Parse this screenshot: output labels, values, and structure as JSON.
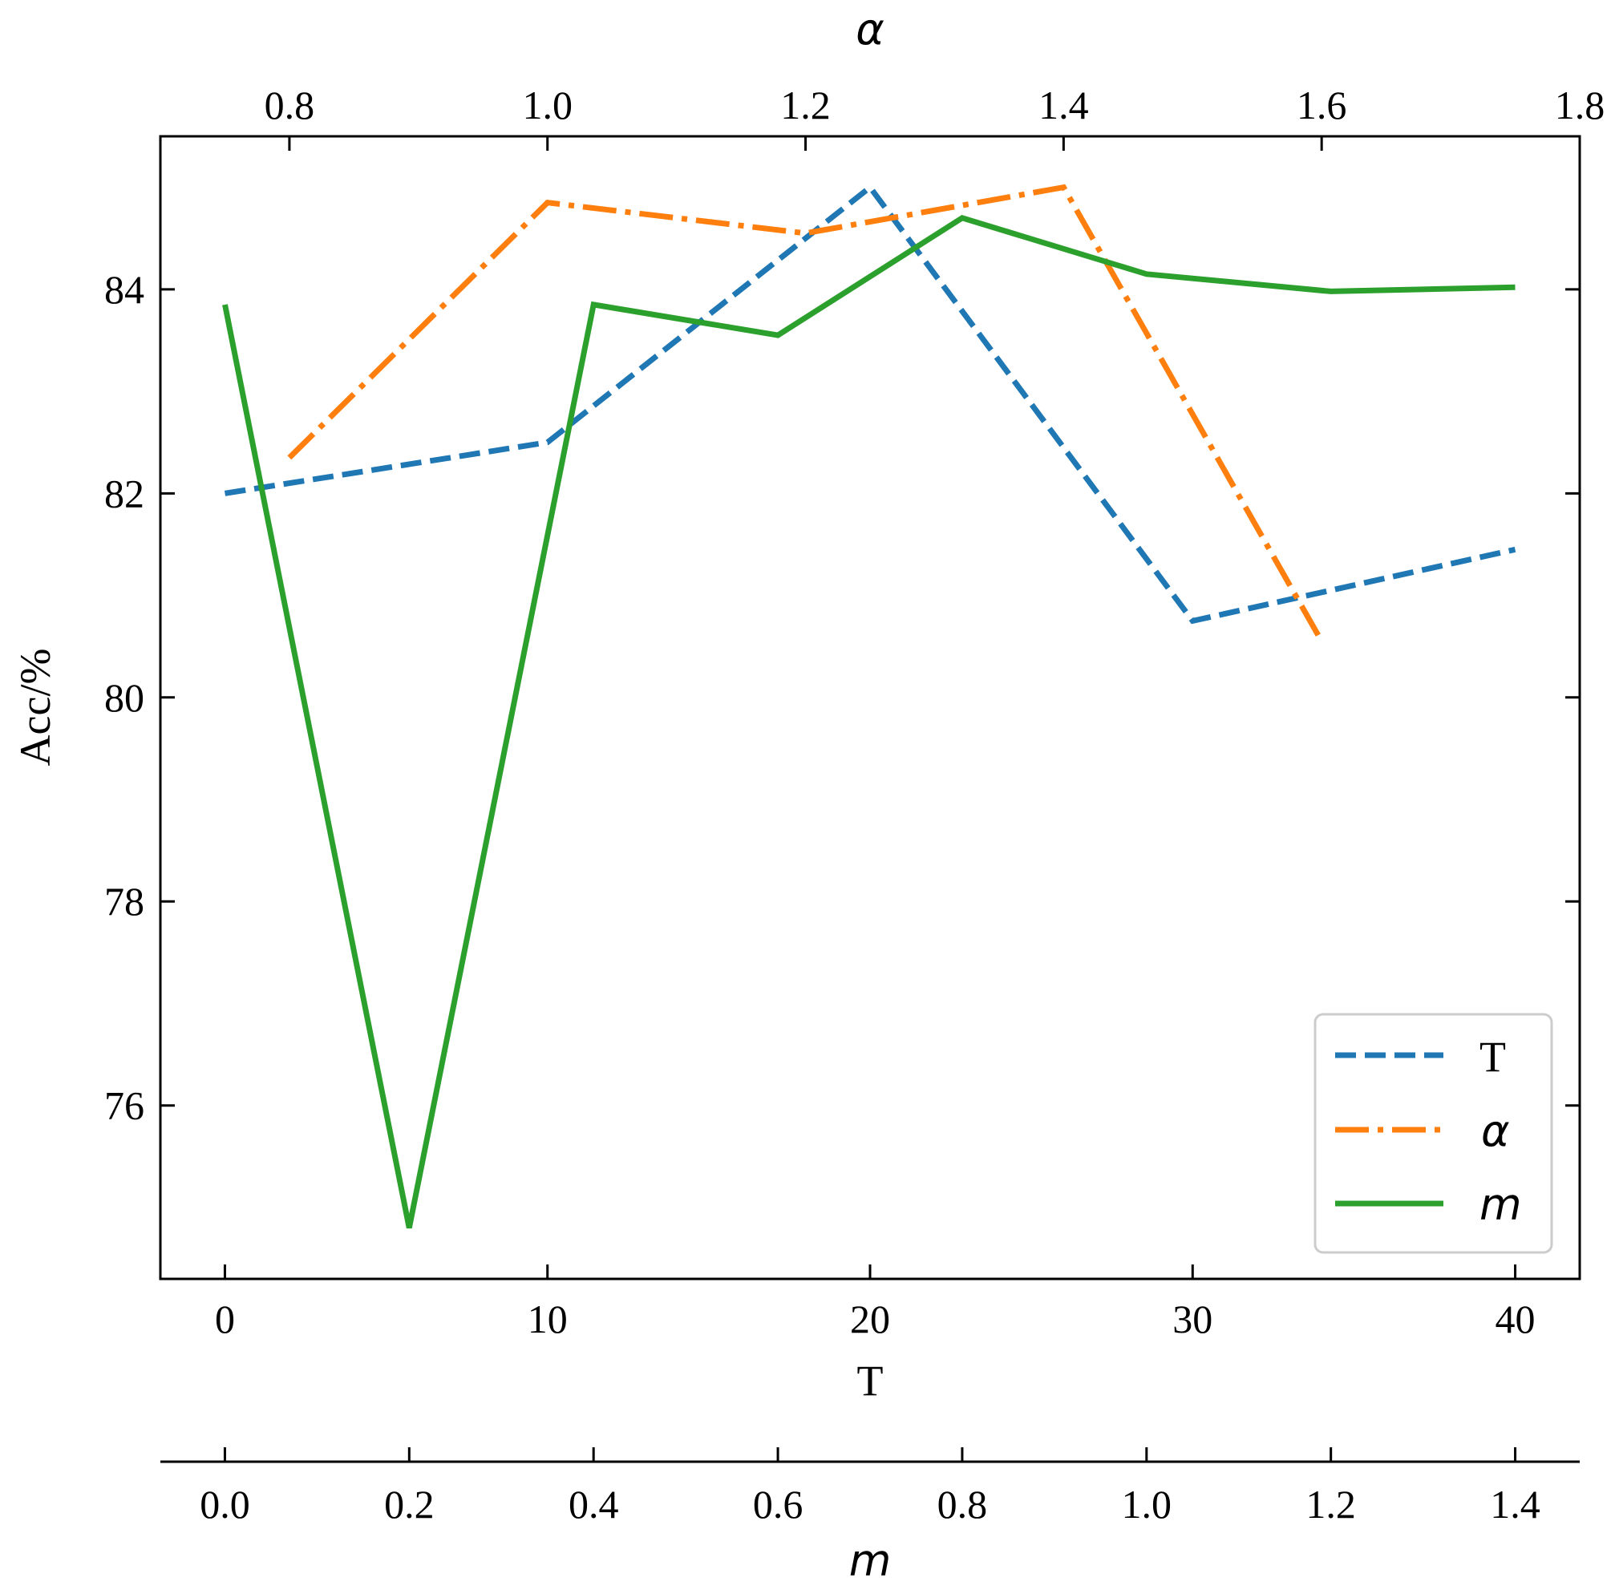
{
  "chart_data": {
    "type": "line",
    "ylabel": "Acc/%",
    "ylim": [
      74.3,
      85.5
    ],
    "y_ticks": [
      "76",
      "78",
      "80",
      "82",
      "84"
    ],
    "grid": false,
    "legend_position": "lower-right",
    "axes": {
      "T": {
        "label": "T",
        "position": "bottom",
        "range": [
          -2,
          42
        ],
        "ticks": [
          "0",
          "10",
          "20",
          "30",
          "40"
        ]
      },
      "alpha": {
        "label": "α",
        "position": "top",
        "range": [
          0.7,
          1.8
        ],
        "ticks": [
          "0.8",
          "1.0",
          "1.2",
          "1.4",
          "1.6",
          "1.8"
        ]
      },
      "m": {
        "label": "m",
        "position": "bottom-offset",
        "range": [
          -0.07,
          1.47
        ],
        "ticks": [
          "0.0",
          "0.2",
          "0.4",
          "0.6",
          "0.8",
          "1.0",
          "1.2",
          "1.4"
        ]
      }
    },
    "series": [
      {
        "name": "T",
        "axis": "T",
        "color": "#1f77b4",
        "dash": "dashed",
        "x": [
          0,
          10,
          20,
          30,
          40
        ],
        "y": [
          82.0,
          82.5,
          85.0,
          80.75,
          81.45
        ]
      },
      {
        "name": "α",
        "axis": "alpha",
        "color": "#ff7f0e",
        "dash": "dashdot",
        "x": [
          0.8,
          1.0,
          1.2,
          1.4,
          1.6
        ],
        "y": [
          82.35,
          84.85,
          84.55,
          85.0,
          80.55
        ]
      },
      {
        "name": "m",
        "axis": "m",
        "color": "#2ca02c",
        "dash": "solid",
        "x": [
          0.0,
          0.2,
          0.4,
          0.6,
          0.8,
          1.0,
          1.2,
          1.4
        ],
        "y": [
          83.85,
          74.8,
          83.85,
          83.55,
          84.7,
          84.15,
          83.98,
          84.02
        ]
      }
    ]
  }
}
